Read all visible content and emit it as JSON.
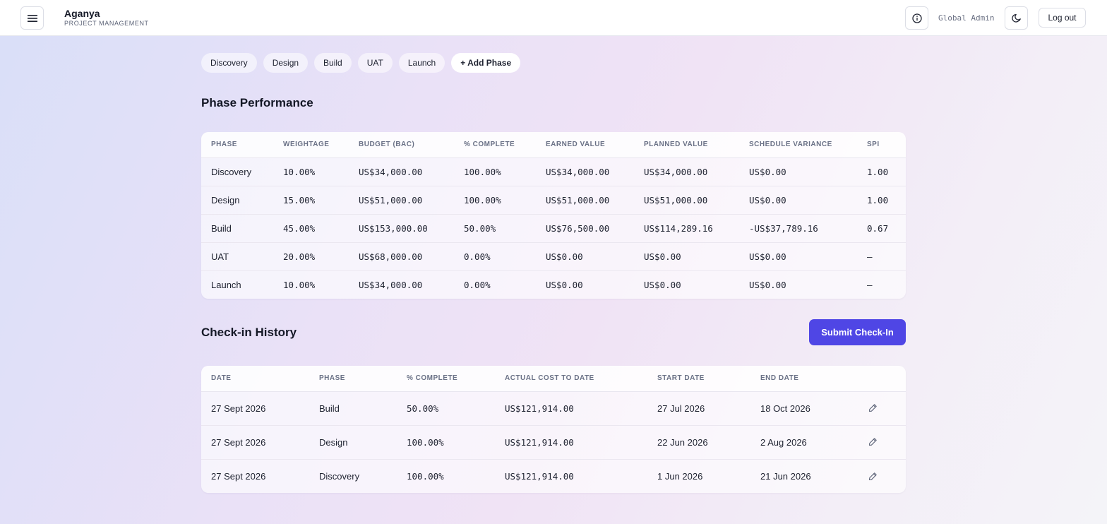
{
  "header": {
    "brand": "Aganya",
    "subtitle": "PROJECT MANAGEMENT",
    "user_role": "Global Admin",
    "logout_label": "Log out"
  },
  "phases": {
    "tabs": [
      "Discovery",
      "Design",
      "Build",
      "UAT",
      "Launch"
    ],
    "add_label": "+ Add Phase"
  },
  "performance": {
    "title": "Phase Performance",
    "columns": [
      "PHASE",
      "WEIGHTAGE",
      "BUDGET (BAC)",
      "% COMPLETE",
      "EARNED VALUE",
      "PLANNED VALUE",
      "SCHEDULE VARIANCE",
      "SPI"
    ],
    "rows": [
      [
        "Discovery",
        "10.00%",
        "US$34,000.00",
        "100.00%",
        "US$34,000.00",
        "US$34,000.00",
        "US$0.00",
        "1.00"
      ],
      [
        "Design",
        "15.00%",
        "US$51,000.00",
        "100.00%",
        "US$51,000.00",
        "US$51,000.00",
        "US$0.00",
        "1.00"
      ],
      [
        "Build",
        "45.00%",
        "US$153,000.00",
        "50.00%",
        "US$76,500.00",
        "US$114,289.16",
        "-US$37,789.16",
        "0.67"
      ],
      [
        "UAT",
        "20.00%",
        "US$68,000.00",
        "0.00%",
        "US$0.00",
        "US$0.00",
        "US$0.00",
        "—"
      ],
      [
        "Launch",
        "10.00%",
        "US$34,000.00",
        "0.00%",
        "US$0.00",
        "US$0.00",
        "US$0.00",
        "—"
      ]
    ]
  },
  "checkins": {
    "title": "Check-in History",
    "submit_label": "Submit Check-In",
    "columns": [
      "DATE",
      "PHASE",
      "% COMPLETE",
      "ACTUAL COST TO DATE",
      "START DATE",
      "END DATE",
      ""
    ],
    "rows": [
      [
        "27 Sept 2026",
        "Build",
        "50.00%",
        "US$121,914.00",
        "27 Jul 2026",
        "18 Oct 2026"
      ],
      [
        "27 Sept 2026",
        "Design",
        "100.00%",
        "US$121,914.00",
        "22 Jun 2026",
        "2 Aug 2026"
      ],
      [
        "27 Sept 2026",
        "Discovery",
        "100.00%",
        "US$121,914.00",
        "1 Jun 2026",
        "21 Jun 2026"
      ]
    ]
  },
  "icons": {
    "menu": "menu-icon",
    "info": "info-icon",
    "theme": "moon-icon",
    "edit": "pencil-icon"
  },
  "colors": {
    "accent": "#4f46e5"
  }
}
